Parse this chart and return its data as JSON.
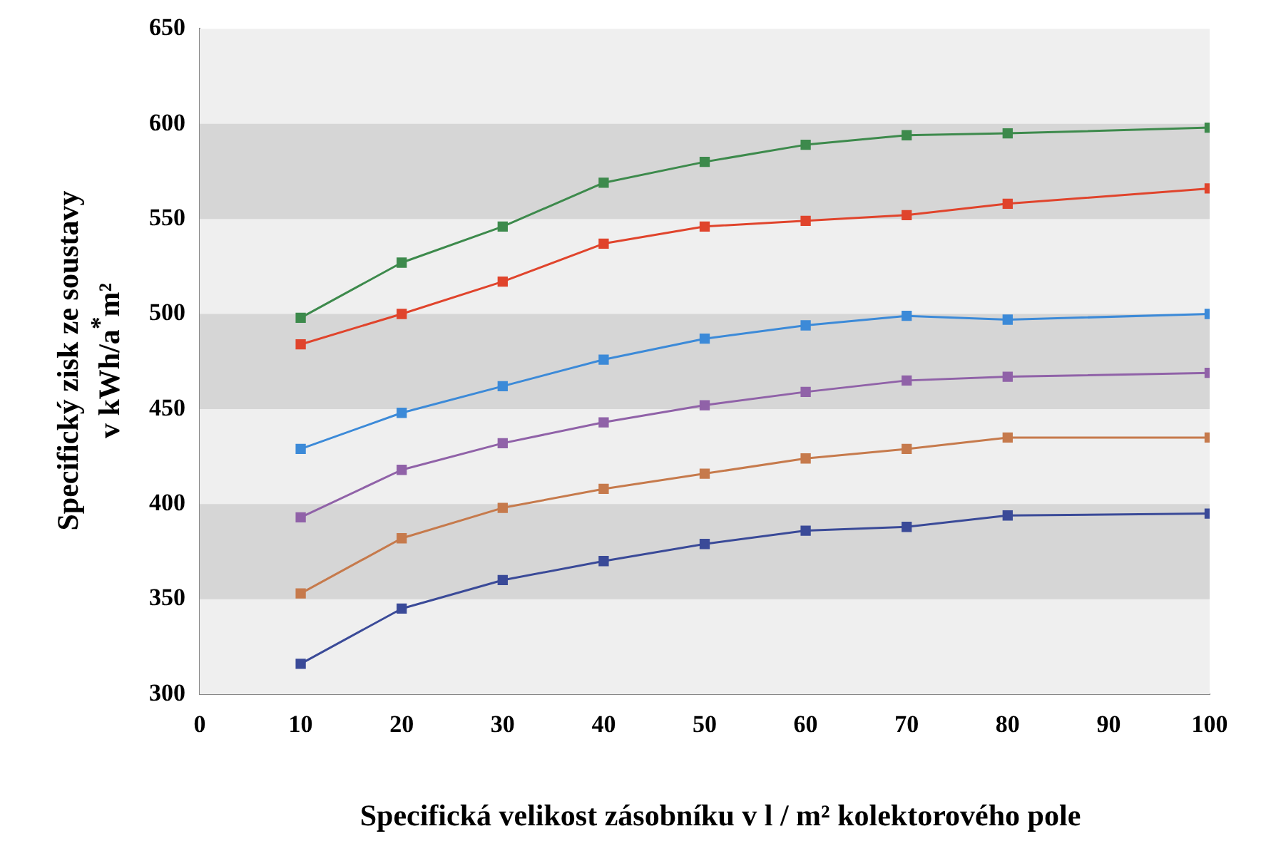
{
  "chart_data": {
    "type": "line",
    "xlabel": "Specifická velikost zásobníku v l / m² kolektorového pole",
    "ylabel": "Specifický zisk ze soustavy\nv kWh/a$^{*}$m²",
    "x": [
      10,
      20,
      30,
      40,
      50,
      60,
      70,
      80,
      100
    ],
    "series": [
      {
        "color": "#3d8a4c",
        "values": [
          498,
          527,
          546,
          569,
          580,
          589,
          594,
          595,
          598
        ]
      },
      {
        "color": "#e0442c",
        "values": [
          484,
          500,
          517,
          537,
          546,
          549,
          552,
          558,
          566
        ]
      },
      {
        "color": "#3c8ad8",
        "values": [
          429,
          448,
          462,
          476,
          487,
          494,
          499,
          497,
          500
        ]
      },
      {
        "color": "#9062a8",
        "values": [
          393,
          418,
          432,
          443,
          452,
          459,
          465,
          467,
          469
        ]
      },
      {
        "color": "#c67a4c",
        "values": [
          353,
          382,
          398,
          408,
          416,
          424,
          429,
          435,
          435
        ]
      },
      {
        "color": "#3a4a98",
        "values": [
          316,
          345,
          360,
          370,
          379,
          386,
          388,
          394,
          395
        ]
      }
    ],
    "xlim": [
      0,
      100
    ],
    "xticks": [
      0,
      10,
      20,
      30,
      40,
      50,
      60,
      70,
      80,
      90,
      100
    ],
    "ylim": [
      300,
      650
    ],
    "yticks": [
      300,
      350,
      400,
      450,
      500,
      550,
      600,
      650
    ],
    "bands": [
      {
        "axis": "y",
        "from": 550,
        "to": 600,
        "color": "#d6d6d6"
      },
      {
        "axis": "y",
        "from": 450,
        "to": 500,
        "color": "#d6d6d6"
      },
      {
        "axis": "y",
        "from": 350,
        "to": 400,
        "color": "#d6d6d6"
      }
    ],
    "grid": false,
    "legend": false,
    "marker": "square",
    "line_style": "solid"
  }
}
